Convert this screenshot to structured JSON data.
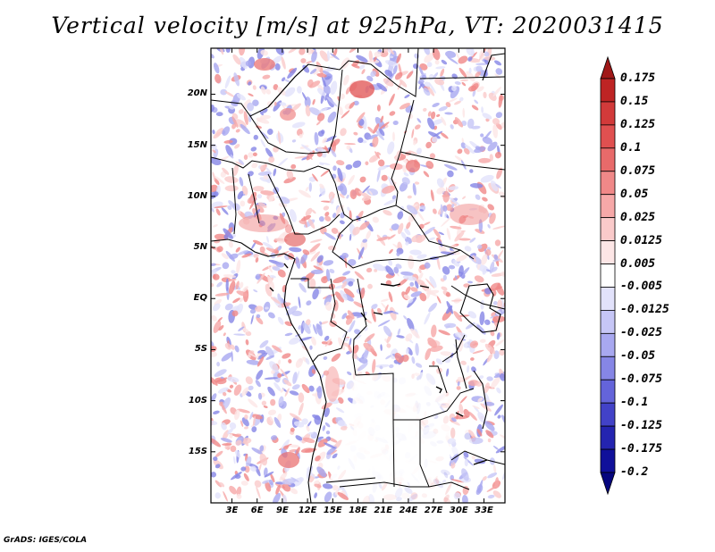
{
  "title": "Vertical velocity [m/s] at 925hPa, VT: 2020031415",
  "footer": "GrADS: IGES/COLA",
  "lat_labels": [
    "20N",
    "15N",
    "10N",
    "5N",
    "EQ",
    "5S",
    "10S",
    "15S"
  ],
  "lat_values": [
    20,
    15,
    10,
    5,
    0,
    -5,
    -10,
    -15
  ],
  "lon_labels": [
    "3E",
    "6E",
    "9E",
    "12E",
    "15E",
    "18E",
    "21E",
    "24E",
    "27E",
    "30E",
    "33E"
  ],
  "lon_values": [
    3,
    6,
    9,
    12,
    15,
    18,
    21,
    24,
    27,
    30,
    33
  ],
  "map_extent": {
    "lon_min": 0.5,
    "lon_max": 35.5,
    "lat_min": -20.0,
    "lat_max": 24.5
  },
  "colorbar": {
    "labels": [
      "0.175",
      "0.15",
      "0.125",
      "0.1",
      "0.075",
      "0.05",
      "0.025",
      "0.0125",
      "0.005",
      "-0.005",
      "-0.0125",
      "-0.025",
      "-0.05",
      "-0.075",
      "-0.1",
      "-0.125",
      "-0.175",
      "-0.2"
    ],
    "colors": [
      "#a01818",
      "#be2424",
      "#d23a3a",
      "#e05050",
      "#e86a6a",
      "#f08888",
      "#f6a8a8",
      "#facaca",
      "#fde6e6",
      "#ffffff",
      "#e2e2fb",
      "#c6c6f6",
      "#a8a8f0",
      "#8686e6",
      "#6464da",
      "#4242c8",
      "#2424b0",
      "#10109a",
      "#06067e"
    ]
  }
}
